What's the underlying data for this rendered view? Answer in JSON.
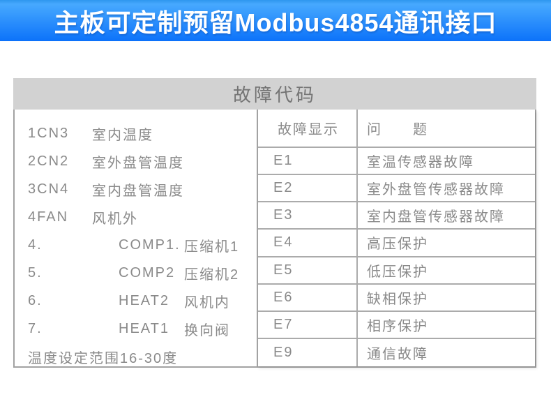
{
  "banner": {
    "title": "主板可定制预留Modbus4854通讯接口"
  },
  "panel": {
    "title": "故障代码",
    "left_list": {
      "rows": [
        {
          "segments": [
            "1CN3",
            "室内温度"
          ]
        },
        {
          "segments": [
            "2CN2",
            "室外盘管温度"
          ]
        },
        {
          "segments": [
            "3CN4",
            "室内盘管温度"
          ]
        },
        {
          "segments": [
            "4FAN",
            "风机外"
          ]
        },
        {
          "segments": [
            "4.",
            "COMP1.",
            "压缩机1"
          ]
        },
        {
          "segments": [
            "5.",
            "COMP2",
            "压缩机2"
          ]
        },
        {
          "segments": [
            "6.",
            "HEAT2",
            "风机内"
          ]
        },
        {
          "segments": [
            "7.",
            "HEAT1",
            "换向阀"
          ]
        },
        {
          "segments": [
            "温度设定范围16-30度"
          ]
        }
      ]
    },
    "fault_table": {
      "headers": [
        "故障显示",
        "问　　题"
      ],
      "rows": [
        [
          "E1",
          "室温传感器故障"
        ],
        [
          "E2",
          "室外盘管传感器故障"
        ],
        [
          "E3",
          "室内盘管传感器故障"
        ],
        [
          "E4",
          "高压保护"
        ],
        [
          "E5",
          "低压保护"
        ],
        [
          "E6",
          "缺相保护"
        ],
        [
          "E7",
          "相序保护"
        ],
        [
          "E9",
          "通信故障"
        ]
      ]
    }
  },
  "appearance": {
    "banner_gradient_top": "#47a9fe",
    "banner_gradient_bottom": "#0c72fa",
    "banner_text_color": "#ffffff",
    "panel_title_bg": "#d2d2d2",
    "panel_title_color": "#747474",
    "table_border_color": "#ababab",
    "body_text_color": "#8a8a8a",
    "page_bg": "#ffffff"
  }
}
